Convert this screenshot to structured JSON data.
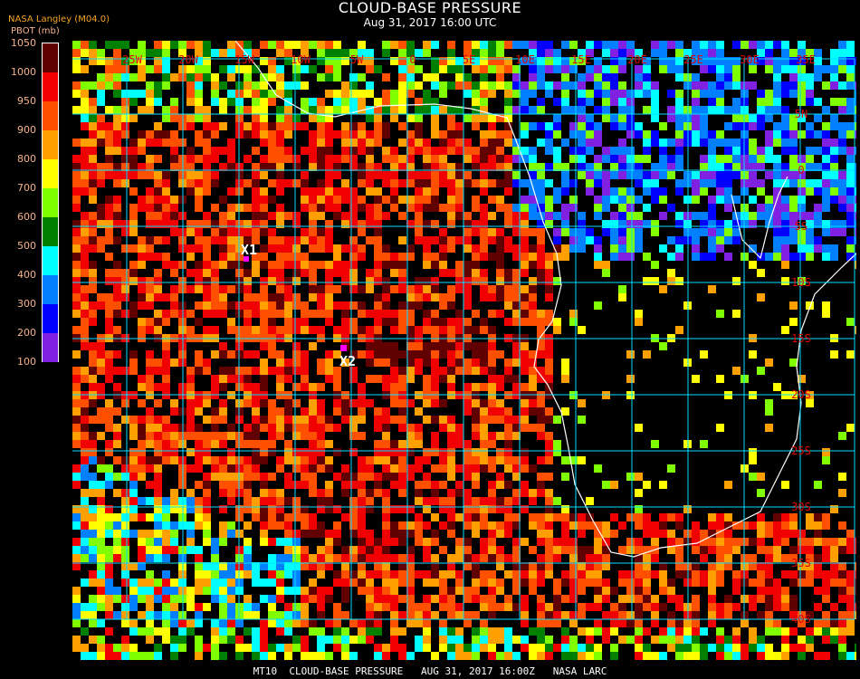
{
  "header": {
    "title": "CLOUD-BASE PRESSURE",
    "subtitle": "Aug 31, 2017 16:00 UTC",
    "source": "NASA Langley (M04.0)"
  },
  "legend": {
    "unit": "PBOT (mb)",
    "ticks": [
      "1050",
      "1000",
      "950",
      "900",
      "800",
      "700",
      "600",
      "500",
      "400",
      "300",
      "200",
      "100"
    ],
    "colors": [
      "#600000",
      "#f00000",
      "#ff5000",
      "#ffa000",
      "#ffff00",
      "#80ff00",
      "#008000",
      "#00ffff",
      "#0080ff",
      "#0000ff",
      "#8020e0"
    ]
  },
  "map": {
    "grid_color": "#00e0ff",
    "coast_color": "#ffffff",
    "label_color": "#e00000",
    "longitude_labels": [
      "25W",
      "20W",
      "15W",
      "10W",
      "5W",
      "0",
      "5E",
      "10E",
      "15E",
      "20E",
      "25E",
      "30E",
      "35E"
    ],
    "latitude_labels": [
      "5N",
      "0",
      "5S",
      "10S",
      "15S",
      "20S",
      "25S",
      "30S",
      "35S",
      "40S"
    ],
    "markers": [
      {
        "label": "X1",
        "color": "#ff00ff"
      },
      {
        "label": "X2",
        "color": "#ff00ff"
      }
    ]
  },
  "footer": "MT10  CLOUD-BASE PRESSURE   AUG 31, 2017 16:00Z   NASA LARC"
}
